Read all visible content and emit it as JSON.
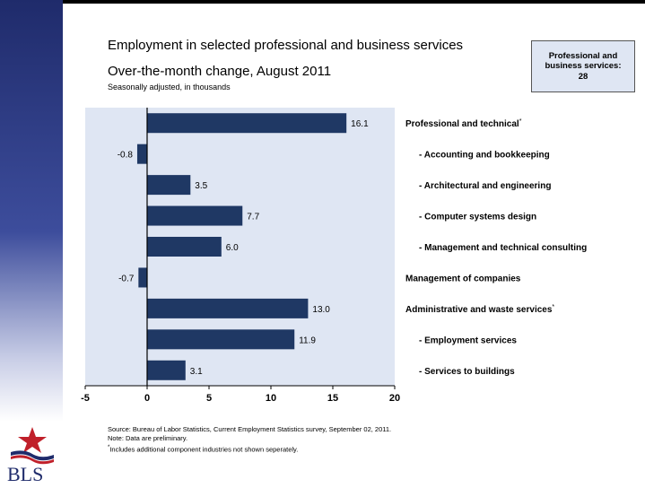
{
  "title": "Employment in selected professional and business services",
  "subtitle": "Over-the-month change, August 2011",
  "unit_note": "Seasonally adjusted, in thousands",
  "callout": {
    "line1": "Professional and",
    "line2": "business services:",
    "value": "28"
  },
  "chart_data": {
    "type": "bar",
    "orientation": "horizontal",
    "categories": [
      {
        "label": "Professional and technical",
        "marker": "*",
        "indent": false
      },
      {
        "label": "- Accounting and bookkeeping",
        "marker": "",
        "indent": true
      },
      {
        "label": "- Architectural and engineering",
        "marker": "",
        "indent": true
      },
      {
        "label": "- Computer systems design",
        "marker": "",
        "indent": true
      },
      {
        "label": "- Management and technical consulting",
        "marker": "",
        "indent": true
      },
      {
        "label": "Management of companies",
        "marker": "",
        "indent": false
      },
      {
        "label": "Administrative and waste services",
        "marker": "*",
        "indent": false
      },
      {
        "label": "- Employment services",
        "marker": "",
        "indent": true
      },
      {
        "label": "- Services to buildings",
        "marker": "",
        "indent": true
      }
    ],
    "values": [
      16.1,
      -0.8,
      3.5,
      7.7,
      6.0,
      -0.7,
      13.0,
      11.9,
      3.1
    ],
    "value_labels": [
      "16.1",
      "-0.8",
      "3.5",
      "7.7",
      "6.0",
      "-0.7",
      "13.0",
      "11.9",
      "3.1"
    ],
    "xlim": [
      -5,
      20
    ],
    "xticks": [
      -5,
      0,
      5,
      10,
      15,
      20
    ],
    "xtick_labels": [
      "-5",
      "0",
      "5",
      "10",
      "15",
      "20"
    ],
    "bar_color": "#1f3864",
    "plot_background": "#dfe6f3",
    "grid": false
  },
  "footnotes": [
    "Source: Bureau of Labor Statistics, Current Employment Statistics survey, September 02, 2011.",
    "Note: Data are preliminary.",
    "Includes additional component industries not shown seperately."
  ],
  "footnote_marker": "*",
  "logo": {
    "text": "BLS",
    "icon": "star-flag-icon"
  }
}
